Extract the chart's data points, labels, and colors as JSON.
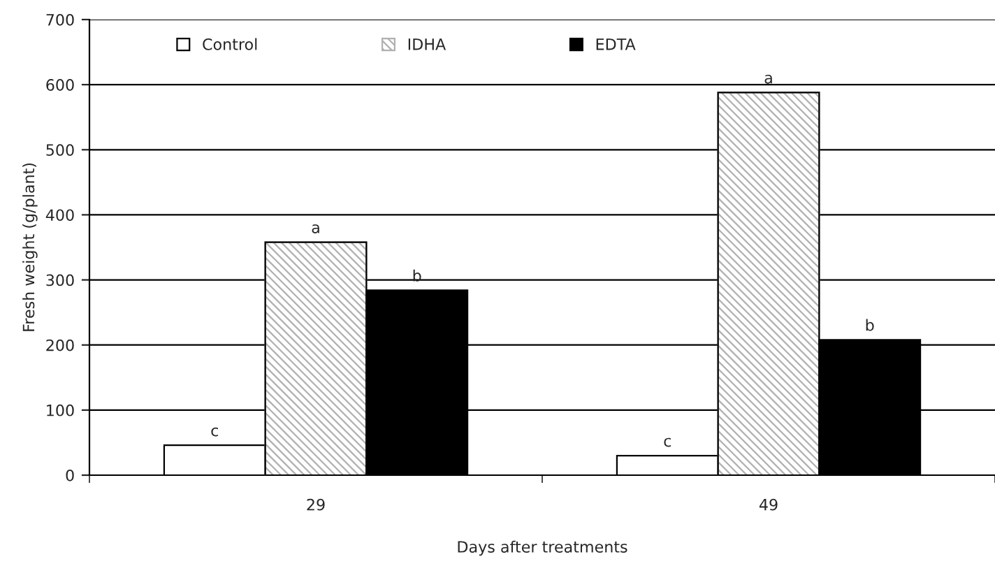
{
  "chart_data": {
    "type": "bar",
    "xlabel": "Days after treatments",
    "ylabel": "Fresh weight (g/plant)",
    "categories": [
      "29",
      "49"
    ],
    "series": [
      {
        "name": "Control",
        "color": "#ffffff",
        "values": [
          46,
          30
        ],
        "value_labels": [
          "c",
          "c"
        ]
      },
      {
        "name": "IDHA",
        "color": "#b0b0b0",
        "values": [
          358,
          588
        ],
        "value_labels": [
          "a",
          "a"
        ]
      },
      {
        "name": "EDTA",
        "color": "#000000",
        "values": [
          284,
          208
        ],
        "value_labels": [
          "b",
          "b"
        ]
      }
    ],
    "ylim": [
      0,
      700
    ],
    "yticks": [
      0,
      100,
      200,
      300,
      400,
      500,
      600,
      700
    ],
    "grid": "y",
    "legend": "top"
  }
}
